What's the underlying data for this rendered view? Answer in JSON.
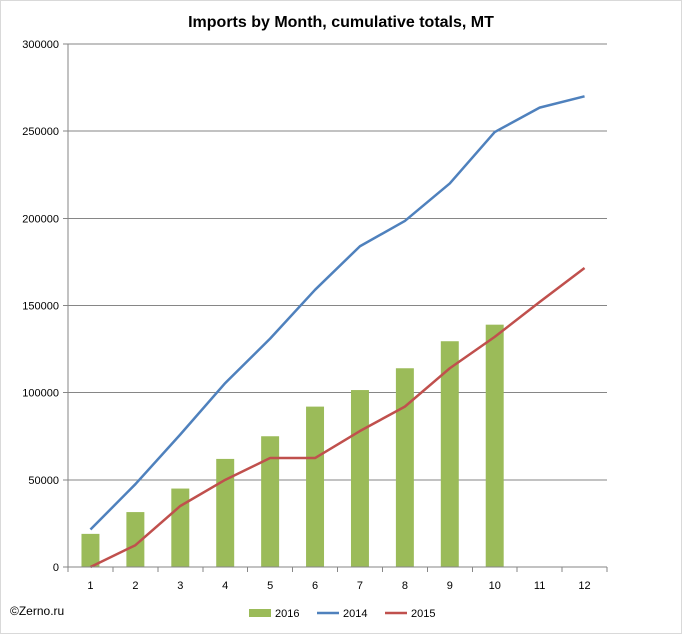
{
  "chart_data": {
    "type": "bar+line",
    "title": "Imports by Month, cumulative totals, MT",
    "categories": [
      "1",
      "2",
      "3",
      "4",
      "5",
      "6",
      "7",
      "8",
      "9",
      "10",
      "11",
      "12"
    ],
    "ylim": [
      0,
      300000
    ],
    "yticks": [
      0,
      50000,
      100000,
      150000,
      200000,
      250000,
      300000
    ],
    "ytick_labels": [
      "0",
      "50000",
      "100000",
      "150000",
      "200000",
      "250000",
      "300000"
    ],
    "grid": true,
    "legend_position": "bottom",
    "series": [
      {
        "name": "2016",
        "kind": "bar",
        "color": "#9bbb59",
        "values": [
          19000,
          31500,
          45000,
          62000,
          75000,
          92000,
          101500,
          114000,
          129500,
          139000,
          null,
          null
        ]
      },
      {
        "name": "2014",
        "kind": "line",
        "color": "#4f81bd",
        "values": [
          21500,
          47500,
          76000,
          105500,
          131000,
          159000,
          184000,
          198500,
          220000,
          249500,
          263500,
          270000
        ]
      },
      {
        "name": "2015",
        "kind": "line",
        "color": "#c0504d",
        "values": [
          0,
          12500,
          35000,
          50000,
          62500,
          62500,
          78000,
          92000,
          114000,
          132000,
          152000,
          171500
        ]
      }
    ]
  },
  "credit": "©Zerno.ru"
}
